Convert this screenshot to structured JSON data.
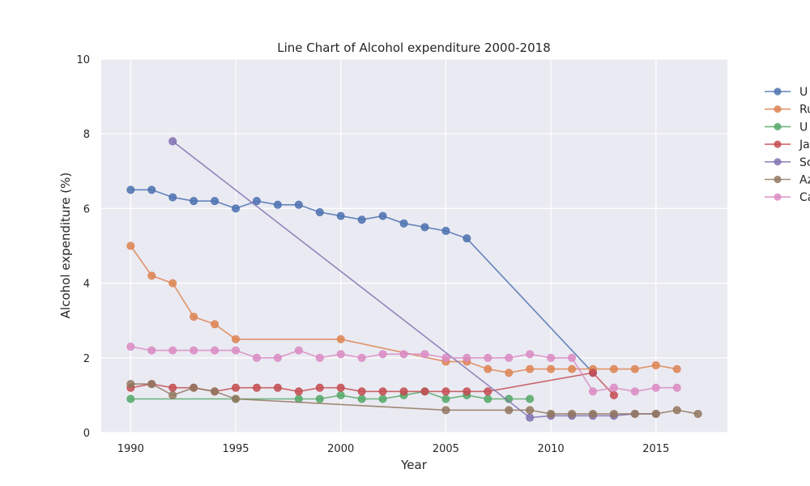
{
  "chart_data": {
    "type": "line",
    "title": "Line Chart of Alcohol expenditure 2000-2018",
    "xlabel": "Year",
    "ylabel": "Alcohol expenditure (%)",
    "xlim": [
      1988.6,
      2018.4
    ],
    "ylim": [
      0,
      10
    ],
    "xticks": [
      1990,
      1995,
      2000,
      2005,
      2010,
      2015
    ],
    "yticks": [
      0,
      2,
      4,
      6,
      8,
      10
    ],
    "grid": true,
    "legend_position": "right-outside",
    "series": [
      {
        "name": "U",
        "color": "#4c72b0",
        "points": [
          [
            1990,
            6.5
          ],
          [
            1991,
            6.5
          ],
          [
            1992,
            6.3
          ],
          [
            1993,
            6.2
          ],
          [
            1994,
            6.2
          ],
          [
            1995,
            6.0
          ],
          [
            1996,
            6.2
          ],
          [
            1997,
            6.1
          ],
          [
            1998,
            6.1
          ],
          [
            1999,
            5.9
          ],
          [
            2000,
            5.8
          ],
          [
            2001,
            5.7
          ],
          [
            2002,
            5.8
          ],
          [
            2003,
            5.6
          ],
          [
            2004,
            5.5
          ],
          [
            2005,
            5.4
          ],
          [
            2006,
            5.2
          ],
          [
            2012,
            1.6
          ]
        ]
      },
      {
        "name": "Ru",
        "color": "#dd8452",
        "points": [
          [
            1990,
            5.0
          ],
          [
            1991,
            4.2
          ],
          [
            1992,
            4.0
          ],
          [
            1993,
            3.1
          ],
          [
            1994,
            2.9
          ],
          [
            1995,
            2.5
          ],
          [
            2000,
            2.5
          ],
          [
            2005,
            1.9
          ],
          [
            2006,
            1.9
          ],
          [
            2007,
            1.7
          ],
          [
            2008,
            1.6
          ],
          [
            2009,
            1.7
          ],
          [
            2010,
            1.7
          ],
          [
            2011,
            1.7
          ],
          [
            2012,
            1.7
          ],
          [
            2013,
            1.7
          ],
          [
            2014,
            1.7
          ],
          [
            2015,
            1.8
          ],
          [
            2016,
            1.7
          ]
        ]
      },
      {
        "name": "U",
        "color": "#55a868",
        "points": [
          [
            1990,
            0.9
          ],
          [
            1995,
            0.9
          ],
          [
            1998,
            0.9
          ],
          [
            1999,
            0.9
          ],
          [
            2000,
            1.0
          ],
          [
            2001,
            0.9
          ],
          [
            2002,
            0.9
          ],
          [
            2003,
            1.0
          ],
          [
            2004,
            1.1
          ],
          [
            2005,
            0.9
          ],
          [
            2006,
            1.0
          ],
          [
            2007,
            0.9
          ],
          [
            2008,
            0.9
          ],
          [
            2009,
            0.9
          ]
        ]
      },
      {
        "name": "Ja",
        "color": "#c44e52",
        "points": [
          [
            1990,
            1.2
          ],
          [
            1991,
            1.3
          ],
          [
            1992,
            1.2
          ],
          [
            1993,
            1.2
          ],
          [
            1994,
            1.1
          ],
          [
            1995,
            1.2
          ],
          [
            1996,
            1.2
          ],
          [
            1997,
            1.2
          ],
          [
            1998,
            1.1
          ],
          [
            1999,
            1.2
          ],
          [
            2000,
            1.2
          ],
          [
            2001,
            1.1
          ],
          [
            2002,
            1.1
          ],
          [
            2003,
            1.1
          ],
          [
            2004,
            1.1
          ],
          [
            2005,
            1.1
          ],
          [
            2006,
            1.1
          ],
          [
            2007,
            1.1
          ],
          [
            2012,
            1.6
          ],
          [
            2013,
            1.0
          ]
        ]
      },
      {
        "name": "Sc",
        "color": "#8172b3",
        "points": [
          [
            1992,
            7.8
          ],
          [
            2009,
            0.4
          ],
          [
            2010,
            0.45
          ],
          [
            2011,
            0.45
          ],
          [
            2012,
            0.45
          ],
          [
            2013,
            0.45
          ],
          [
            2014,
            0.5
          ],
          [
            2015,
            0.5
          ]
        ]
      },
      {
        "name": "Az",
        "color": "#937860",
        "points": [
          [
            1990,
            1.3
          ],
          [
            1991,
            1.3
          ],
          [
            1992,
            1.0
          ],
          [
            1993,
            1.2
          ],
          [
            1994,
            1.1
          ],
          [
            1995,
            0.9
          ],
          [
            2005,
            0.6
          ],
          [
            2008,
            0.6
          ],
          [
            2009,
            0.6
          ],
          [
            2010,
            0.5
          ],
          [
            2011,
            0.5
          ],
          [
            2012,
            0.5
          ],
          [
            2013,
            0.5
          ],
          [
            2014,
            0.5
          ],
          [
            2015,
            0.5
          ],
          [
            2016,
            0.6
          ],
          [
            2017,
            0.5
          ]
        ]
      },
      {
        "name": "Ca",
        "color": "#da8bc3",
        "points": [
          [
            1990,
            2.3
          ],
          [
            1991,
            2.2
          ],
          [
            1992,
            2.2
          ],
          [
            1993,
            2.2
          ],
          [
            1994,
            2.2
          ],
          [
            1995,
            2.2
          ],
          [
            1996,
            2.0
          ],
          [
            1997,
            2.0
          ],
          [
            1998,
            2.2
          ],
          [
            1999,
            2.0
          ],
          [
            2000,
            2.1
          ],
          [
            2001,
            2.0
          ],
          [
            2002,
            2.1
          ],
          [
            2003,
            2.1
          ],
          [
            2004,
            2.1
          ],
          [
            2005,
            2.0
          ],
          [
            2006,
            2.0
          ],
          [
            2007,
            2.0
          ],
          [
            2008,
            2.0
          ],
          [
            2009,
            2.1
          ],
          [
            2010,
            2.0
          ],
          [
            2011,
            2.0
          ],
          [
            2012,
            1.1
          ],
          [
            2013,
            1.2
          ],
          [
            2014,
            1.1
          ],
          [
            2015,
            1.2
          ],
          [
            2016,
            1.2
          ]
        ]
      }
    ]
  },
  "colors": {
    "plot_background": "#eaeaf2",
    "grid": "#ffffff"
  }
}
